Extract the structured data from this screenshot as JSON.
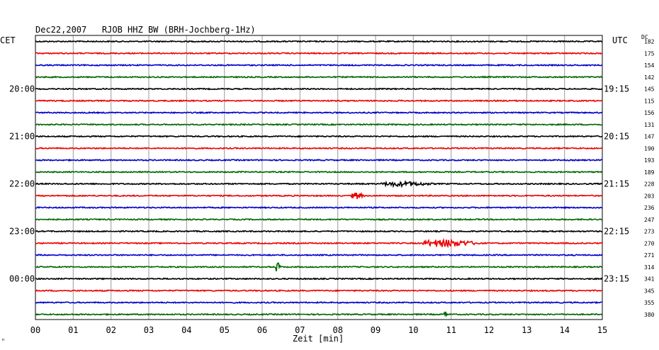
{
  "header": {
    "title": "Dec22,2007   RJOB HHZ BW (BRH-Jochberg-1Hz)",
    "left_tz": "CET",
    "right_tz": "UTC",
    "dc_label": "DC",
    "corner_mark": "ⁿ"
  },
  "chart_data": {
    "type": "line",
    "title": "Dec22,2007   RJOB HHZ BW (BRH-Jochberg-1Hz)",
    "xlabel": "Zeit [min]",
    "xlim": [
      0,
      15
    ],
    "x_ticks": [
      "00",
      "01",
      "02",
      "03",
      "04",
      "05",
      "06",
      "07",
      "08",
      "09",
      "10",
      "11",
      "12",
      "13",
      "14",
      "15"
    ],
    "left_time_labels": [
      "20:00",
      "21:00",
      "22:00",
      "23:00",
      "00:00"
    ],
    "right_time_labels": [
      "19:15",
      "20:15",
      "21:15",
      "22:15",
      "23:15"
    ],
    "colors": [
      "#000000",
      "#ee0000",
      "#0000cc",
      "#006600"
    ],
    "traces": [
      {
        "dc": "182",
        "events": []
      },
      {
        "dc": "175",
        "events": []
      },
      {
        "dc": "154",
        "events": []
      },
      {
        "dc": "142",
        "events": []
      },
      {
        "dc": "145",
        "events": []
      },
      {
        "dc": "115",
        "events": []
      },
      {
        "dc": "156",
        "events": []
      },
      {
        "dc": "131",
        "events": []
      },
      {
        "dc": "147",
        "events": []
      },
      {
        "dc": "190",
        "events": []
      },
      {
        "dc": "193",
        "events": []
      },
      {
        "dc": "189",
        "events": []
      },
      {
        "dc": "228",
        "events": [
          {
            "start": 9.1,
            "end": 10.8,
            "amp": 0.35
          }
        ]
      },
      {
        "dc": "203",
        "events": [
          {
            "start": 8.35,
            "end": 8.75,
            "amp": 0.5
          }
        ]
      },
      {
        "dc": "236",
        "events": []
      },
      {
        "dc": "247",
        "events": []
      },
      {
        "dc": "273",
        "events": []
      },
      {
        "dc": "270",
        "events": [
          {
            "start": 10.2,
            "end": 12.0,
            "amp": 0.55
          }
        ]
      },
      {
        "dc": "271",
        "events": []
      },
      {
        "dc": "314",
        "events": [
          {
            "start": 6.35,
            "end": 6.5,
            "amp": 0.75
          }
        ]
      },
      {
        "dc": "341",
        "events": []
      },
      {
        "dc": "345",
        "events": []
      },
      {
        "dc": "355",
        "events": []
      },
      {
        "dc": "380",
        "events": [
          {
            "start": 10.8,
            "end": 10.95,
            "amp": 0.4
          }
        ]
      }
    ]
  }
}
